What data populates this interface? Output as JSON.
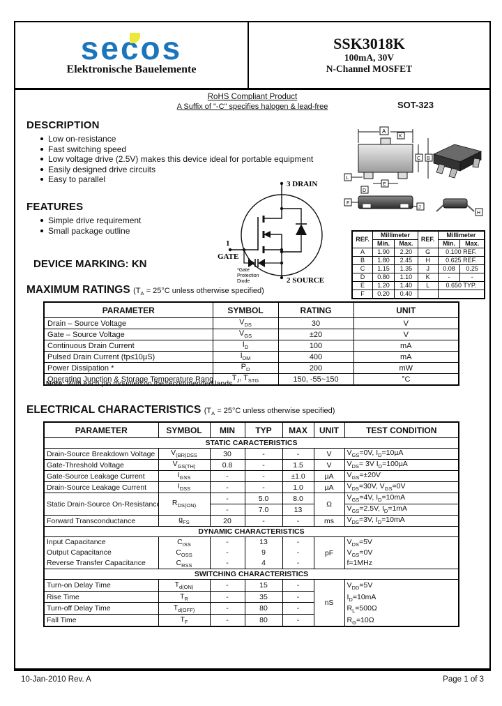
{
  "colors": {
    "logo_blue": "#1b75bc",
    "logo_yellow": "#ece83a"
  },
  "header": {
    "logo_text": "secos",
    "logo_tagline": "Elektronische Bauelemente",
    "part_number": "SSK3018K",
    "rating_line": "100mA, 30V",
    "type_line": "N-Channel MOSFET",
    "rohs_line1": "RoHS Compliant Product",
    "rohs_line2": "A Suffix of \"-C\" specifies halogen & lead-free",
    "package_name": "SOT-323"
  },
  "description": {
    "title": "DESCRIPTION",
    "bullets": [
      "Low on-resistance",
      "Fast switching speed",
      "Low voltage drive (2.5V) makes this device ideal for portable equipment",
      "Easily designed drive circuits",
      "Easy to parallel"
    ]
  },
  "features": {
    "title": "FEATURES",
    "bullets": [
      "Simple drive requirement",
      "Small package outline"
    ]
  },
  "device_marking": "DEVICE MARKING: KN",
  "circuit": {
    "pin_drain": "3 DRAIN",
    "pin_gate_num": "1",
    "pin_gate": "GATE",
    "pin_source": "2 SOURCE",
    "note_line1": "*Gate",
    "note_line2": "Protection",
    "note_line3": "Diode"
  },
  "dimensions": {
    "col_ref": "REF.",
    "col_mm": "Millimeter",
    "col_min": "Min.",
    "col_max": "Max.",
    "left": [
      {
        "ref": "A",
        "min": "1.90",
        "max": "2.20"
      },
      {
        "ref": "B",
        "min": "1.80",
        "max": "2.45"
      },
      {
        "ref": "C",
        "min": "1.15",
        "max": "1.35"
      },
      {
        "ref": "D",
        "min": "0.80",
        "max": "1.10"
      },
      {
        "ref": "E",
        "min": "1.20",
        "max": "1.40"
      },
      {
        "ref": "F",
        "min": "0.20",
        "max": "0.40"
      }
    ],
    "right": [
      {
        "ref": "G",
        "val": "0.100 REF."
      },
      {
        "ref": "H",
        "val": "0.625 REF."
      },
      {
        "ref": "J",
        "min": "0.08",
        "max": "0.25"
      },
      {
        "ref": "K",
        "min": "-",
        "max": "-"
      },
      {
        "ref": "L",
        "val": "0.650 TYP."
      }
    ],
    "labels": [
      "A",
      "K",
      "C",
      "B",
      "E",
      "L",
      "D",
      "F",
      "J",
      "H"
    ]
  },
  "max_ratings": {
    "title": "MAXIMUM RATINGS",
    "title_note": "(T~A~ = 25°C unless otherwise specified)",
    "headers": [
      "PARAMETER",
      "SYMBOL",
      "RATING",
      "UNIT"
    ],
    "rows": [
      {
        "parameter": "Drain – Source Voltage",
        "symbol": "V~DS~",
        "rating": "30",
        "unit": "V"
      },
      {
        "parameter": "Gate – Source Voltage",
        "symbol": "V~GS~",
        "rating": "±20",
        "unit": "V"
      },
      {
        "parameter": "Continuous Drain Current",
        "symbol": "I~D~",
        "rating": "100",
        "unit": "mA"
      },
      {
        "parameter": "Pulsed Drain Current (tp≤10µS)",
        "symbol": "I~DM~",
        "rating": "400",
        "unit": "mA"
      },
      {
        "parameter": "Power Dissipation *",
        "symbol": "P~D~",
        "rating": "200",
        "unit": "mW"
      },
      {
        "parameter": "Operating Junction & Storage Temperature Range",
        "symbol": "T~J~, T~STG~",
        "rating": "150, -55~150",
        "unit": "°C"
      }
    ],
    "note_label": "Note:",
    "note_text": "With each pin mounted on the recommended lands."
  },
  "electrical": {
    "title": "ELECTRICAL CHARACTERISTICS",
    "title_note": "(T~A~ = 25°C unless otherwise specified)",
    "headers": [
      "PARAMETER",
      "SYMBOL",
      "MIN",
      "TYP",
      "MAX",
      "UNIT",
      "TEST CONDITION"
    ],
    "section_static": "STATIC CARACTERISTICS",
    "static_rows": [
      {
        "parameter": "Drain-Source Breakdown Voltage",
        "symbol": "V~(BR)DSS~",
        "min": "30",
        "typ": "-",
        "max": "-",
        "unit": "V",
        "condition": "V~GS~=0V, I~D~=10µA"
      },
      {
        "parameter": "Gate-Threshold Voltage",
        "symbol": "V~GS(TH)~",
        "min": "0.8",
        "typ": "-",
        "max": "1.5",
        "unit": "V",
        "condition": "V~DS~= 3V I~D~=100µA"
      },
      {
        "parameter": "Gate-Source Leakage Current",
        "symbol": "I~GSS~",
        "min": "-",
        "typ": "-",
        "max": "±1.0",
        "unit": "µA",
        "condition": "V~GS~=±20V"
      },
      {
        "parameter": "Drain-Source Leakage Current",
        "symbol": "I~DSS~",
        "min": "-",
        "typ": "-",
        "max": "1.0",
        "unit": "µA",
        "condition": "V~DS~=30V, V~GS~=0V"
      }
    ],
    "rdson": {
      "parameter": "Static Drain-Source On-Resistance",
      "symbol": "R~DS(ON)~",
      "unit": "Ω",
      "rows": [
        {
          "min": "-",
          "typ": "5.0",
          "max": "8.0",
          "condition": "V~GS~=4V, I~D~=10mA"
        },
        {
          "min": "-",
          "typ": "7.0",
          "max": "13",
          "condition": "V~GS~=2.5V, I~D~=1mA"
        }
      ]
    },
    "gfs_row": {
      "parameter": "Forward Transconductance",
      "symbol": "g~FS~",
      "min": "20",
      "typ": "-",
      "max": "-",
      "unit": "ms",
      "condition": "V~DS~=3V, I~D~=10mA"
    },
    "section_dynamic": "DYNAMIC CHARACTERISTICS",
    "cap_rows": [
      {
        "parameter": "Input Capacitance",
        "symbol": "C~ISS~",
        "min": "-",
        "typ": "13",
        "max": "-"
      },
      {
        "parameter": "Output Capacitance",
        "symbol": "C~OSS~",
        "min": "-",
        "typ": "9",
        "max": "-"
      },
      {
        "parameter": "Reverse Transfer Capacitance",
        "symbol": "C~RSS~",
        "min": "-",
        "typ": "4",
        "max": "-"
      }
    ],
    "cap_unit": "pF",
    "cap_conditions": [
      "V~DS~=5V",
      "V~GS~=0V",
      "f=1MHz"
    ],
    "section_switching": "SWITCHING CHARACTERISTICS",
    "switch_rows": [
      {
        "parameter": "Turn-on Delay Time",
        "symbol": "T~d(ON)~",
        "min": "-",
        "typ": "15",
        "max": "-"
      },
      {
        "parameter": "Rise Time",
        "symbol": "T~R~",
        "min": "-",
        "typ": "35",
        "max": "-"
      },
      {
        "parameter": "Turn-off Delay Time",
        "symbol": "T~d(OFF)~",
        "min": "-",
        "typ": "80",
        "max": "-"
      },
      {
        "parameter": "Fall Time",
        "symbol": "T~F~",
        "min": "-",
        "typ": "80",
        "max": "-"
      }
    ],
    "switch_unit": "nS",
    "switch_conditions": [
      "V~DD~=5V",
      "I~D~=10mA",
      "R~L~=500Ω",
      "R~G~=10Ω"
    ]
  },
  "footer": {
    "left": "10-Jan-2010 Rev. A",
    "right": "Page 1 of 3"
  }
}
